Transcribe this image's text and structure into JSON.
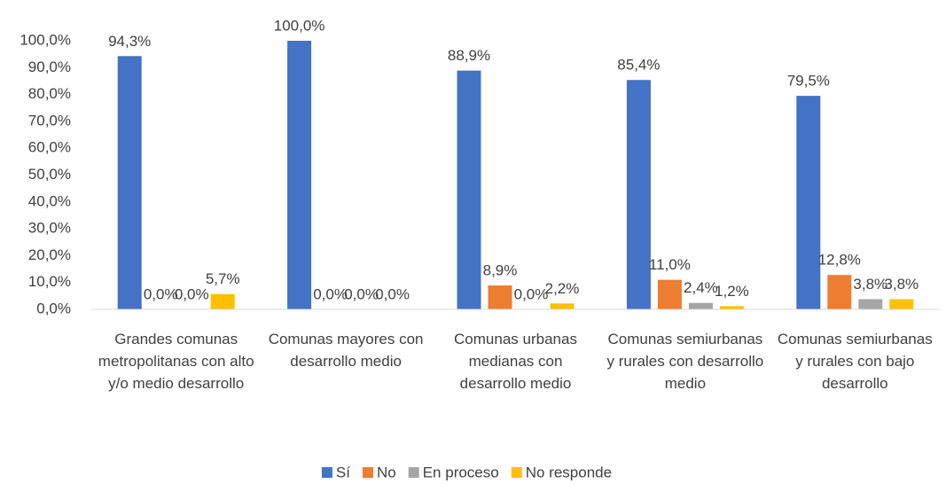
{
  "chart_data": {
    "type": "bar",
    "categories": [
      "Grandes comunas metropolitanas con alto y/o medio desarrollo",
      "Comunas mayores con desarrollo medio",
      "Comunas urbanas medianas con desarrollo medio",
      "Comunas semiurbanas y rurales con desarrollo medio",
      "Comunas semiurbanas y rurales con bajo desarrollo"
    ],
    "series": [
      {
        "name": "Sí",
        "color": "#4472c4",
        "values": [
          94.3,
          100.0,
          88.9,
          85.4,
          79.5
        ],
        "value_labels": [
          "94,3%",
          "100,0%",
          "88,9%",
          "85,4%",
          "79,5%"
        ]
      },
      {
        "name": "No",
        "color": "#ed7d31",
        "values": [
          0.0,
          0.0,
          8.9,
          11.0,
          12.8
        ],
        "value_labels": [
          "0,0%",
          "0,0%",
          "8,9%",
          "11,0%",
          "12,8%"
        ]
      },
      {
        "name": "En proceso",
        "color": "#a5a5a5",
        "values": [
          0.0,
          0.0,
          0.0,
          2.4,
          3.8
        ],
        "value_labels": [
          "0,0%",
          "0,0%",
          "0,0%",
          "2,4%",
          "3,8%"
        ]
      },
      {
        "name": "No responde",
        "color": "#ffc000",
        "values": [
          5.7,
          0.0,
          2.2,
          1.2,
          3.8
        ],
        "value_labels": [
          "5,7%",
          "0,0%",
          "2,2%",
          "1,2%",
          "3,8%"
        ]
      }
    ],
    "ylim": [
      0,
      100
    ],
    "yticks": [
      {
        "value": 0,
        "label": "0,0%"
      },
      {
        "value": 10,
        "label": "10,0%"
      },
      {
        "value": 20,
        "label": "20,0%"
      },
      {
        "value": 30,
        "label": "30,0%"
      },
      {
        "value": 40,
        "label": "40,0%"
      },
      {
        "value": 50,
        "label": "50,0%"
      },
      {
        "value": 60,
        "label": "60,0%"
      },
      {
        "value": 70,
        "label": "70,0%"
      },
      {
        "value": 80,
        "label": "80,0%"
      },
      {
        "value": 90,
        "label": "90,0%"
      },
      {
        "value": 100,
        "label": "100,0%"
      }
    ],
    "legend": "bottom"
  }
}
